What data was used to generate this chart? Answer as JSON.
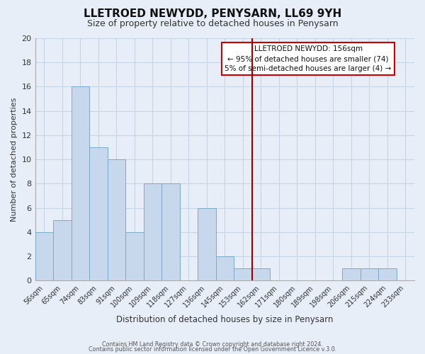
{
  "title": "LLETROED NEWYDD, PENYSARN, LL69 9YH",
  "subtitle": "Size of property relative to detached houses in Penysarn",
  "xlabel": "Distribution of detached houses by size in Penysarn",
  "ylabel": "Number of detached properties",
  "footer_line1": "Contains HM Land Registry data © Crown copyright and database right 2024.",
  "footer_line2": "Contains public sector information licensed under the Open Government Licence v.3.0.",
  "x_labels": [
    "56sqm",
    "65sqm",
    "74sqm",
    "83sqm",
    "91sqm",
    "100sqm",
    "109sqm",
    "118sqm",
    "127sqm",
    "136sqm",
    "145sqm",
    "153sqm",
    "162sqm",
    "171sqm",
    "180sqm",
    "189sqm",
    "198sqm",
    "206sqm",
    "215sqm",
    "224sqm",
    "233sqm"
  ],
  "bar_values": [
    4,
    5,
    16,
    11,
    10,
    4,
    8,
    8,
    0,
    6,
    2,
    1,
    1,
    0,
    0,
    0,
    0,
    1,
    1,
    1,
    0
  ],
  "bar_color": "#c8d8ec",
  "bar_edge_color": "#7aaac8",
  "grid_color": "#c5d5e5",
  "vline_x_index": 11.5,
  "vline_color": "#990000",
  "annotation_title": "LLETROED NEWYDD: 156sqm",
  "annotation_line1": "← 95% of detached houses are smaller (74)",
  "annotation_line2": "5% of semi-detached houses are larger (4) →",
  "annotation_box_facecolor": "#ffffff",
  "annotation_box_edgecolor": "#cc0000",
  "ylim": [
    0,
    20
  ],
  "yticks": [
    0,
    2,
    4,
    6,
    8,
    10,
    12,
    14,
    16,
    18,
    20
  ],
  "bg_color": "#e8eef8"
}
